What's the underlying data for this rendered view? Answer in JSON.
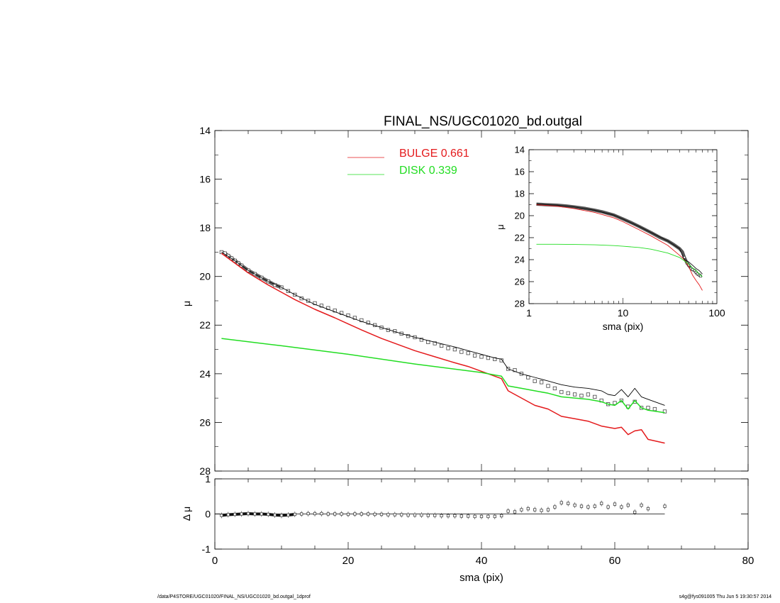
{
  "footer": {
    "path": "/data/P4STORE/UGC01020/FINAL_NS/UGC01020_bd.outgal_1dprof",
    "stamp": "s4g@fys091005  Thu Jun  5 19:30:57 2014"
  },
  "colors": {
    "bulge": "#e41a1c",
    "disk": "#22dd22",
    "model": "#000000",
    "data": "#555555"
  },
  "chart_data": [
    {
      "id": "main",
      "type": "line",
      "title": "FINAL_NS/UGC01020_bd.outgal",
      "xlabel": "",
      "ylabel": "μ",
      "xlim": [
        0,
        80
      ],
      "ylim": [
        28,
        14
      ],
      "yticks": [
        14,
        16,
        18,
        20,
        22,
        24,
        26,
        28
      ],
      "legend": [
        {
          "label": "BULGE  0.661",
          "color": "#e41a1c"
        },
        {
          "label": "DISK  0.339",
          "color": "#22dd22"
        }
      ],
      "legend_position": "top-center",
      "series": [
        {
          "name": "BULGE",
          "role": "bulge",
          "x": [
            1,
            3,
            5,
            8,
            10,
            12,
            15,
            18,
            20,
            22,
            25,
            28,
            30,
            33,
            36,
            38,
            40,
            42,
            43,
            44,
            45,
            46,
            48,
            50,
            52,
            54,
            56,
            58,
            60,
            61,
            62,
            63,
            64,
            65,
            67.5
          ],
          "y": [
            19.05,
            19.45,
            19.85,
            20.35,
            20.65,
            20.95,
            21.35,
            21.7,
            21.95,
            22.2,
            22.55,
            22.85,
            23.05,
            23.3,
            23.55,
            23.7,
            23.9,
            24.1,
            24.2,
            24.7,
            24.85,
            25.0,
            25.3,
            25.45,
            25.75,
            25.85,
            25.95,
            26.15,
            26.25,
            26.2,
            26.5,
            26.35,
            26.3,
            26.7,
            26.85
          ]
        },
        {
          "name": "DISK",
          "role": "disk",
          "x": [
            1,
            10,
            20,
            30,
            40,
            42,
            43,
            44,
            46,
            48,
            50,
            52,
            54,
            56,
            58,
            59,
            60,
            61,
            62,
            63,
            64,
            65,
            67.5
          ],
          "y": [
            22.55,
            22.85,
            23.2,
            23.6,
            23.95,
            24.05,
            24.1,
            24.5,
            24.6,
            24.7,
            24.8,
            24.95,
            25.0,
            25.05,
            25.15,
            25.25,
            25.3,
            25.1,
            25.45,
            25.1,
            25.4,
            25.5,
            25.6
          ]
        },
        {
          "name": "MODEL",
          "role": "model",
          "x": [
            1,
            3,
            5,
            8,
            10,
            12,
            15,
            18,
            20,
            22,
            25,
            28,
            30,
            33,
            36,
            38,
            40,
            42,
            43,
            44,
            46,
            48,
            50,
            52,
            54,
            56,
            58,
            59,
            60,
            61,
            62,
            63,
            64,
            65,
            67.5
          ],
          "y": [
            19.0,
            19.35,
            19.75,
            20.2,
            20.45,
            20.75,
            21.15,
            21.45,
            21.65,
            21.85,
            22.1,
            22.35,
            22.5,
            22.7,
            22.9,
            23.05,
            23.2,
            23.35,
            23.4,
            23.8,
            24.0,
            24.15,
            24.3,
            24.45,
            24.55,
            24.6,
            24.7,
            24.85,
            24.9,
            24.65,
            24.95,
            24.6,
            24.95,
            25.05,
            25.3
          ]
        },
        {
          "name": "DATA",
          "role": "data",
          "x": [
            1,
            1.5,
            2,
            2.5,
            3,
            3.5,
            4,
            5,
            6,
            7,
            8,
            9,
            10,
            11,
            12,
            13,
            14,
            15,
            16,
            17,
            18,
            19,
            20,
            21,
            22,
            23,
            24,
            25,
            26,
            27,
            28,
            29,
            30,
            31,
            32,
            33,
            34,
            35,
            36,
            37,
            38,
            39,
            40,
            41,
            42,
            43,
            44,
            45,
            46,
            47,
            48,
            49,
            50,
            51,
            52,
            53,
            54,
            55,
            56,
            57,
            58,
            59,
            60,
            61,
            62,
            63,
            64,
            65,
            66,
            67.5
          ],
          "y": [
            19.0,
            19.05,
            19.15,
            19.25,
            19.35,
            19.45,
            19.55,
            19.75,
            19.9,
            20.05,
            20.2,
            20.35,
            20.45,
            20.6,
            20.75,
            20.9,
            21.0,
            21.1,
            21.2,
            21.3,
            21.4,
            21.5,
            21.6,
            21.7,
            21.8,
            21.9,
            22.0,
            22.1,
            22.2,
            22.25,
            22.35,
            22.45,
            22.5,
            22.6,
            22.7,
            22.75,
            22.85,
            22.95,
            23.0,
            23.1,
            23.15,
            23.25,
            23.3,
            23.35,
            23.4,
            23.45,
            23.8,
            23.85,
            24.0,
            24.15,
            24.3,
            24.35,
            24.5,
            24.6,
            24.75,
            24.8,
            24.85,
            24.9,
            24.85,
            24.95,
            25.1,
            25.25,
            25.2,
            25.1,
            25.35,
            25.15,
            25.4,
            25.4,
            25.45,
            25.55
          ]
        }
      ]
    },
    {
      "id": "residual",
      "type": "scatter",
      "xlabel": "sma (pix)",
      "ylabel": "Δ μ",
      "xlim": [
        0,
        80
      ],
      "ylim": [
        -1,
        1
      ],
      "xticks": [
        0,
        20,
        40,
        60,
        80
      ],
      "yticks": [
        -1,
        0,
        1
      ],
      "zero_line": [
        0,
        67.5
      ],
      "series": [
        {
          "name": "RESIDUAL",
          "role": "residual",
          "x": [
            1,
            2,
            3,
            4,
            5,
            6,
            7,
            8,
            9,
            10,
            11,
            12,
            13,
            14,
            15,
            16,
            17,
            18,
            19,
            20,
            21,
            22,
            23,
            24,
            25,
            26,
            27,
            28,
            29,
            30,
            31,
            32,
            33,
            34,
            35,
            36,
            37,
            38,
            39,
            40,
            41,
            42,
            43,
            44,
            45,
            46,
            47,
            48,
            49,
            50,
            51,
            52,
            53,
            54,
            55,
            56,
            57,
            58,
            59,
            60,
            61,
            62,
            63,
            64,
            65,
            67.5
          ],
          "y": [
            -0.04,
            -0.02,
            -0.01,
            0.0,
            0.01,
            0.0,
            0.0,
            -0.01,
            -0.03,
            -0.04,
            -0.03,
            -0.01,
            0.0,
            0.01,
            0.01,
            0.01,
            0.0,
            0.0,
            0.0,
            -0.01,
            0.0,
            0.0,
            0.0,
            -0.01,
            -0.01,
            -0.02,
            -0.02,
            -0.02,
            -0.03,
            -0.03,
            -0.03,
            -0.04,
            -0.04,
            -0.05,
            -0.05,
            -0.05,
            -0.06,
            -0.06,
            -0.07,
            -0.07,
            -0.07,
            -0.07,
            -0.05,
            0.08,
            0.06,
            0.12,
            0.15,
            0.12,
            0.1,
            0.12,
            0.2,
            0.32,
            0.3,
            0.25,
            0.22,
            0.2,
            0.22,
            0.3,
            0.2,
            0.28,
            0.2,
            0.25,
            0.05,
            0.25,
            0.15,
            0.22
          ]
        }
      ]
    },
    {
      "id": "inset",
      "type": "line",
      "xlabel": "sma (pix)",
      "ylabel": "μ",
      "xscale": "log",
      "xlim": [
        1,
        100
      ],
      "ylim": [
        28,
        14
      ],
      "xticks": [
        1,
        10,
        100
      ],
      "yticks": [
        14,
        16,
        18,
        20,
        22,
        24,
        26,
        28
      ],
      "series": [
        {
          "name": "BULGE",
          "role": "bulge",
          "x": [
            1.2,
            2,
            3,
            5,
            8,
            10,
            15,
            20,
            30,
            40,
            45,
            50,
            55,
            60,
            65,
            70
          ],
          "y": [
            19.0,
            19.15,
            19.35,
            19.7,
            20.2,
            20.55,
            21.3,
            21.85,
            22.7,
            23.6,
            24.0,
            24.6,
            25.4,
            25.9,
            26.3,
            26.8
          ]
        },
        {
          "name": "DISK",
          "role": "disk",
          "x": [
            1.2,
            2,
            3,
            5,
            8,
            10,
            15,
            20,
            30,
            40,
            45,
            50,
            55,
            60,
            65,
            70
          ],
          "y": [
            22.6,
            22.6,
            22.62,
            22.65,
            22.72,
            22.78,
            22.9,
            23.05,
            23.4,
            23.8,
            24.1,
            24.4,
            24.75,
            25.0,
            25.3,
            25.55
          ]
        },
        {
          "name": "MODEL",
          "role": "model",
          "x": [
            1.2,
            2,
            3,
            5,
            8,
            10,
            15,
            20,
            30,
            40,
            45,
            50,
            55,
            60,
            65,
            70
          ],
          "y": [
            18.95,
            19.05,
            19.2,
            19.5,
            19.95,
            20.3,
            21.0,
            21.55,
            22.3,
            23.0,
            24.0,
            24.2,
            24.5,
            24.8,
            25.0,
            25.3
          ]
        },
        {
          "name": "DATA",
          "role": "data",
          "x": [
            1.2,
            1.5,
            2,
            2.5,
            3,
            4,
            5,
            6,
            8,
            10,
            12,
            15,
            18,
            20,
            25,
            30,
            35,
            40,
            43,
            45,
            48,
            50,
            53,
            55,
            58,
            60,
            62,
            65,
            67
          ],
          "y": [
            18.95,
            19.0,
            19.05,
            19.12,
            19.2,
            19.35,
            19.5,
            19.65,
            19.95,
            20.3,
            20.6,
            21.0,
            21.35,
            21.55,
            22.0,
            22.3,
            22.65,
            23.0,
            23.3,
            23.8,
            24.3,
            24.5,
            24.8,
            24.9,
            25.0,
            25.15,
            25.3,
            25.4,
            25.5
          ]
        }
      ]
    }
  ]
}
